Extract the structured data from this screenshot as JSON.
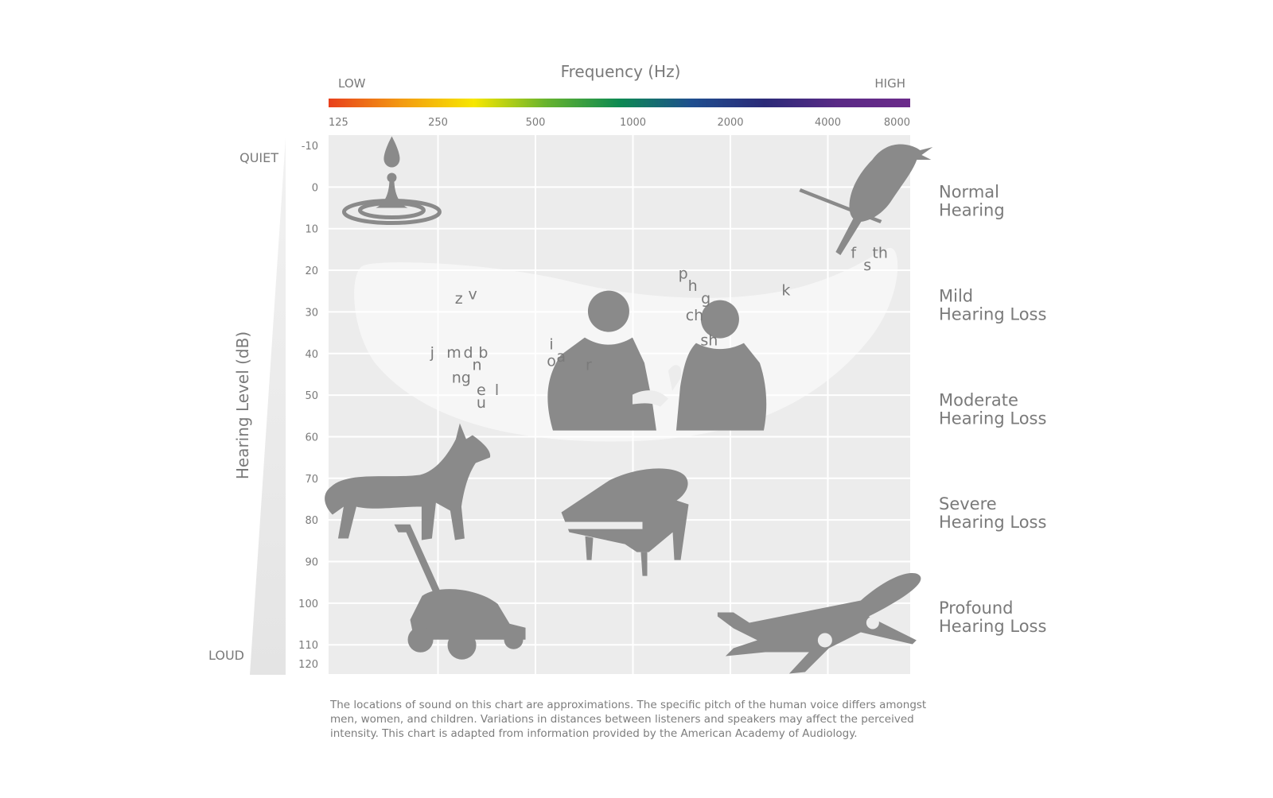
{
  "chart_data": {
    "type": "scatter",
    "title": "Frequency (Hz)",
    "xlabel": "Frequency (Hz)",
    "ylabel": "Hearing Level (dB)",
    "x_scale": "log2",
    "x_ticks": [
      125,
      250,
      500,
      1000,
      2000,
      4000,
      8000
    ],
    "y_ticks": [
      -10,
      0,
      10,
      20,
      30,
      40,
      50,
      60,
      70,
      80,
      90,
      100,
      110,
      120
    ],
    "xlim": [
      125,
      8000
    ],
    "ylim": [
      -10,
      120
    ],
    "y_inverted": true,
    "grid": true,
    "freq_low_label": "LOW",
    "freq_high_label": "HIGH",
    "level_quiet_label": "QUIET",
    "level_loud_label": "LOUD",
    "spectrum_colors": [
      "#e8401c",
      "#f39a12",
      "#f7e700",
      "#66b32e",
      "#0d8a52",
      "#1f4e8f",
      "#2b2a78",
      "#5a2a86",
      "#6b2a8a"
    ],
    "grid_color": "#ffffff",
    "plot_bg": "#ececec",
    "icon_color": "#8a8a8a",
    "regions": [
      {
        "label": "Normal Hearing",
        "y_center": 5
      },
      {
        "label": "Mild Hearing Loss",
        "y_center": 30
      },
      {
        "label": "Moderate Hearing Loss",
        "y_center": 55
      },
      {
        "label": "Severe Hearing Loss",
        "y_center": 80
      },
      {
        "label": "Profound Hearing Loss",
        "y_center": 105
      }
    ],
    "speech_sounds": [
      {
        "text": "z",
        "x": 290,
        "y": 28
      },
      {
        "text": "v",
        "x": 320,
        "y": 27
      },
      {
        "text": "j",
        "x": 240,
        "y": 41
      },
      {
        "text": "m",
        "x": 280,
        "y": 41
      },
      {
        "text": "d",
        "x": 310,
        "y": 41
      },
      {
        "text": "b",
        "x": 345,
        "y": 41
      },
      {
        "text": "n",
        "x": 330,
        "y": 44
      },
      {
        "text": "ng",
        "x": 295,
        "y": 47
      },
      {
        "text": "e",
        "x": 340,
        "y": 50
      },
      {
        "text": "l",
        "x": 380,
        "y": 50
      },
      {
        "text": "u",
        "x": 340,
        "y": 53
      },
      {
        "text": "i",
        "x": 560,
        "y": 39
      },
      {
        "text": "o",
        "x": 560,
        "y": 43
      },
      {
        "text": "a",
        "x": 600,
        "y": 42
      },
      {
        "text": "r",
        "x": 730,
        "y": 44
      },
      {
        "text": "p",
        "x": 1430,
        "y": 22
      },
      {
        "text": "h",
        "x": 1530,
        "y": 25
      },
      {
        "text": "g",
        "x": 1680,
        "y": 28
      },
      {
        "text": "ch",
        "x": 1550,
        "y": 32
      },
      {
        "text": "sh",
        "x": 1720,
        "y": 38
      },
      {
        "text": "k",
        "x": 2970,
        "y": 26
      },
      {
        "text": "f",
        "x": 4800,
        "y": 17
      },
      {
        "text": "s",
        "x": 5300,
        "y": 20
      },
      {
        "text": "th",
        "x": 5800,
        "y": 17
      }
    ],
    "sound_icons": [
      {
        "icon": "dripping-faucet-icon",
        "x": 180,
        "y": 5
      },
      {
        "icon": "bird-chirping-icon",
        "x": 4900,
        "y": 3
      },
      {
        "icon": "talking-couple-icon",
        "x": 1250,
        "y": 48
      },
      {
        "icon": "barking-dog-icon",
        "x": 220,
        "y": 73
      },
      {
        "icon": "piano-icon",
        "x": 1000,
        "y": 82
      },
      {
        "icon": "lawn-mower-icon",
        "x": 280,
        "y": 104
      },
      {
        "icon": "airplane-icon",
        "x": 3600,
        "y": 107
      }
    ]
  },
  "footnote": "The locations of sound on this chart are approximations. The specific pitch of the human voice differs amongst men, women, and children. Variations in distances between listeners and speakers may affect the perceived intensity. This chart is adapted from information provided by the American Academy of Audiology."
}
